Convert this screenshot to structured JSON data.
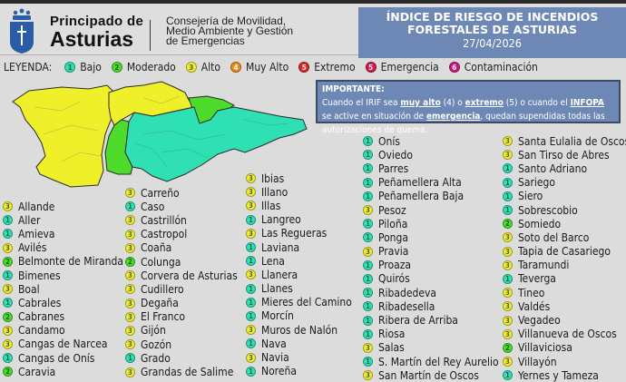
{
  "header": {
    "brand_line1": "Principado de",
    "brand_line2": "Asturias",
    "consejeria_lines": [
      "Consejería de Movilidad,",
      "Medio Ambiente y Gestión",
      "de Emergencias"
    ],
    "title_line1": "ÍNDICE DE RIESGO DE INCENDIOS",
    "title_line2": "FORESTALES DE ASTURIAS",
    "date": "27/04/2026"
  },
  "legend": {
    "label": "LEYENDA:",
    "items": [
      {
        "level": "1",
        "label": "Bajo",
        "color": "#2fe0b4"
      },
      {
        "level": "2",
        "label": "Moderado",
        "color": "#4ddc2c"
      },
      {
        "level": "3",
        "label": "Alto",
        "color": "#f0f02a"
      },
      {
        "level": "4",
        "label": "Muy Alto",
        "color": "#f08a1c"
      },
      {
        "level": "5",
        "label": "Extremo",
        "color": "#e02424"
      },
      {
        "level": "5",
        "label": "Emergencia",
        "color": "#d8184a"
      },
      {
        "level": "6",
        "label": "Contaminación",
        "color": "#cc157f"
      }
    ]
  },
  "notice": {
    "heading": "IMPORTANTE:",
    "t1": "Cuando el IRIF sea ",
    "k1": "muy alto",
    "t2": " (4) o ",
    "k2": "extremo",
    "t3": " (5) o cuando el ",
    "k3": "INFOPA",
    "t4": " se active en situación de ",
    "k4": "emergencia",
    "t5": ", quedan supendidas todas las autorizaciones de quema."
  },
  "map": {
    "region": "Asturias",
    "zones": [
      {
        "area": "west",
        "level": "3",
        "color": "#f0f02a"
      },
      {
        "area": "central-north",
        "level": "3",
        "color": "#f0f02a"
      },
      {
        "area": "central-west strip",
        "level": "2",
        "color": "#4ddc2c"
      },
      {
        "area": "north-east coast",
        "level": "2",
        "color": "#4ddc2c"
      },
      {
        "area": "centre and east",
        "level": "1",
        "color": "#2fe0b4"
      }
    ]
  },
  "columns": [
    [
      {
        "level": "3",
        "name": "Allande"
      },
      {
        "level": "1",
        "name": "Aller"
      },
      {
        "level": "1",
        "name": "Amieva"
      },
      {
        "level": "3",
        "name": "Avilés"
      },
      {
        "level": "2",
        "name": "Belmonte de Miranda"
      },
      {
        "level": "1",
        "name": "Bimenes"
      },
      {
        "level": "3",
        "name": "Boal"
      },
      {
        "level": "1",
        "name": "Cabrales"
      },
      {
        "level": "2",
        "name": "Cabranes"
      },
      {
        "level": "3",
        "name": "Candamo"
      },
      {
        "level": "3",
        "name": "Cangas de Narcea"
      },
      {
        "level": "1",
        "name": "Cangas de Onís"
      },
      {
        "level": "2",
        "name": "Caravia"
      }
    ],
    [
      {
        "level": "3",
        "name": "Carreño"
      },
      {
        "level": "1",
        "name": "Caso"
      },
      {
        "level": "3",
        "name": "Castrillón"
      },
      {
        "level": "3",
        "name": "Castropol"
      },
      {
        "level": "3",
        "name": "Coaña"
      },
      {
        "level": "2",
        "name": "Colunga"
      },
      {
        "level": "3",
        "name": "Corvera de Asturias"
      },
      {
        "level": "3",
        "name": "Cudillero"
      },
      {
        "level": "3",
        "name": "Degaña"
      },
      {
        "level": "3",
        "name": "El Franco"
      },
      {
        "level": "3",
        "name": "Gijón"
      },
      {
        "level": "3",
        "name": "Gozón"
      },
      {
        "level": "1",
        "name": "Grado"
      },
      {
        "level": "3",
        "name": "Grandas de Salime"
      }
    ],
    [
      {
        "level": "3",
        "name": "Ibias"
      },
      {
        "level": "3",
        "name": "Illano"
      },
      {
        "level": "3",
        "name": "Illas"
      },
      {
        "level": "1",
        "name": "Langreo"
      },
      {
        "level": "3",
        "name": "Las Regueras"
      },
      {
        "level": "1",
        "name": "Laviana"
      },
      {
        "level": "1",
        "name": "Lena"
      },
      {
        "level": "3",
        "name": "Llanera"
      },
      {
        "level": "1",
        "name": "Llanes"
      },
      {
        "level": "1",
        "name": "Mieres del Camino"
      },
      {
        "level": "1",
        "name": "Morcín"
      },
      {
        "level": "3",
        "name": "Muros de Nalón"
      },
      {
        "level": "1",
        "name": "Nava"
      },
      {
        "level": "3",
        "name": "Navia"
      },
      {
        "level": "1",
        "name": "Noreña"
      }
    ],
    [
      {
        "level": "1",
        "name": "Onís"
      },
      {
        "level": "1",
        "name": "Oviedo"
      },
      {
        "level": "1",
        "name": "Parres"
      },
      {
        "level": "1",
        "name": "Peñamellera Alta"
      },
      {
        "level": "1",
        "name": "Peñamellera Baja"
      },
      {
        "level": "3",
        "name": "Pesoz"
      },
      {
        "level": "1",
        "name": "Piloña"
      },
      {
        "level": "1",
        "name": "Ponga"
      },
      {
        "level": "3",
        "name": "Pravia"
      },
      {
        "level": "1",
        "name": "Proaza"
      },
      {
        "level": "1",
        "name": "Quirós"
      },
      {
        "level": "1",
        "name": "Ribadedeva"
      },
      {
        "level": "1",
        "name": "Ribadesella"
      },
      {
        "level": "1",
        "name": "Ribera de Arriba"
      },
      {
        "level": "1",
        "name": "Riosa"
      },
      {
        "level": "3",
        "name": "Salas"
      },
      {
        "level": "1",
        "name": "S. Martín del Rey Aurelio"
      },
      {
        "level": "3",
        "name": "San Martín de Oscos"
      }
    ],
    [
      {
        "level": "3",
        "name": "Santa Eulalia de Oscos"
      },
      {
        "level": "3",
        "name": "San Tirso de Abres"
      },
      {
        "level": "1",
        "name": "Santo Adriano"
      },
      {
        "level": "1",
        "name": "Sariego"
      },
      {
        "level": "1",
        "name": "Siero"
      },
      {
        "level": "1",
        "name": "Sobrescobio"
      },
      {
        "level": "2",
        "name": "Somiedo"
      },
      {
        "level": "3",
        "name": "Soto del Barco"
      },
      {
        "level": "3",
        "name": "Tapia de Casariego"
      },
      {
        "level": "3",
        "name": "Taramundi"
      },
      {
        "level": "1",
        "name": "Teverga"
      },
      {
        "level": "3",
        "name": "Tineo"
      },
      {
        "level": "3",
        "name": "Valdés"
      },
      {
        "level": "3",
        "name": "Vegadeo"
      },
      {
        "level": "3",
        "name": "Villanueva de Oscos"
      },
      {
        "level": "2",
        "name": "Villaviciosa"
      },
      {
        "level": "3",
        "name": "Villayón"
      },
      {
        "level": "1",
        "name": "Yernes y Tameza"
      }
    ]
  ]
}
